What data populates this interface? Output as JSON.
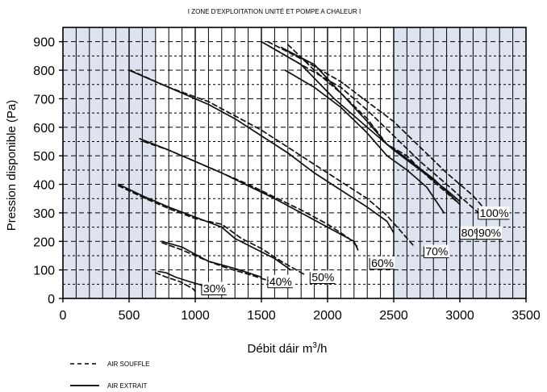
{
  "chart_data": {
    "type": "line",
    "title": "I ZONE D'EXPLOITATION UNITÉ ET POMPE A CHALEUR  I",
    "xlabel_main": "Débit dáir m",
    "xlabel_sup": "3",
    "xlabel_tail": "/h",
    "ylabel": "Pression disponible (Pa)",
    "xlim": [
      0,
      3500
    ],
    "ylim": [
      0,
      950
    ],
    "xticks": [
      "0",
      "500",
      "1000",
      "1500",
      "2000",
      "2500",
      "3000",
      "3500"
    ],
    "xtick_values": [
      0,
      500,
      1000,
      1500,
      2000,
      2500,
      3000,
      3500
    ],
    "yticks": [
      "0",
      "100",
      "200",
      "300",
      "400",
      "500",
      "600",
      "700",
      "800",
      "900"
    ],
    "ytick_values": [
      0,
      100,
      200,
      300,
      400,
      500,
      600,
      700,
      800,
      900
    ],
    "grid": true,
    "shaded_x_ranges": [
      [
        0,
        700
      ],
      [
        2500,
        3500
      ]
    ],
    "shade_color": "#dde4ef",
    "legend": [
      {
        "label": "AIR SOUFFLE",
        "style": "dashed"
      },
      {
        "label": "AIR EXTRAIT",
        "style": "solid"
      }
    ],
    "series": [
      {
        "label": "30%",
        "label_at": [
          1060,
          35
        ],
        "lines": [
          {
            "style": "solid",
            "points": [
              [
                720,
                95
              ],
              [
                780,
                90
              ],
              [
                850,
                75
              ],
              [
                950,
                60
              ],
              [
                1060,
                45
              ]
            ]
          },
          {
            "style": "dashed",
            "points": [
              [
                700,
                90
              ],
              [
                780,
                75
              ],
              [
                880,
                60
              ],
              [
                980,
                35
              ],
              [
                1000,
                25
              ]
            ]
          }
        ]
      },
      {
        "label": "40%",
        "label_at": [
          1560,
          60
        ],
        "lines": [
          {
            "style": "solid",
            "points": [
              [
                750,
                200
              ],
              [
                900,
                180
              ],
              [
                1000,
                155
              ],
              [
                1100,
                130
              ],
              [
                1300,
                105
              ],
              [
                1400,
                90
              ],
              [
                1500,
                75
              ]
            ]
          },
          {
            "style": "dashed",
            "points": [
              [
                750,
                195
              ],
              [
                900,
                170
              ],
              [
                1000,
                150
              ],
              [
                1100,
                130
              ],
              [
                1250,
                105
              ],
              [
                1400,
                85
              ],
              [
                1570,
                60
              ]
            ]
          }
        ]
      },
      {
        "label": "50%",
        "label_at": [
          1880,
          75
        ],
        "lines": [
          {
            "style": "solid",
            "points": [
              [
                420,
                400
              ],
              [
                600,
                360
              ],
              [
                800,
                320
              ],
              [
                1000,
                285
              ],
              [
                1200,
                250
              ],
              [
                1300,
                210
              ],
              [
                1450,
                175
              ],
              [
                1600,
                140
              ],
              [
                1720,
                100
              ]
            ]
          },
          {
            "style": "dashed",
            "points": [
              [
                420,
                395
              ],
              [
                600,
                355
              ],
              [
                800,
                315
              ],
              [
                1000,
                280
              ],
              [
                1200,
                260
              ],
              [
                1350,
                210
              ],
              [
                1500,
                175
              ],
              [
                1650,
                130
              ],
              [
                1820,
                85
              ]
            ]
          }
        ]
      },
      {
        "label": "60%",
        "label_at": [
          2330,
          125
        ],
        "lines": [
          {
            "style": "solid",
            "points": [
              [
                580,
                560
              ],
              [
                800,
                520
              ],
              [
                1000,
                480
              ],
              [
                1200,
                440
              ],
              [
                1400,
                395
              ],
              [
                1600,
                350
              ],
              [
                1800,
                300
              ],
              [
                2000,
                250
              ],
              [
                2200,
                200
              ],
              [
                2230,
                170
              ]
            ]
          },
          {
            "style": "dashed",
            "points": [
              [
                610,
                550
              ],
              [
                800,
                520
              ],
              [
                1000,
                480
              ],
              [
                1200,
                440
              ],
              [
                1400,
                400
              ],
              [
                1600,
                355
              ],
              [
                1800,
                310
              ],
              [
                2000,
                260
              ],
              [
                2150,
                215
              ],
              [
                2230,
                180
              ]
            ]
          }
        ]
      },
      {
        "label": "70%",
        "label_at": [
          2740,
          165
        ],
        "lines": [
          {
            "style": "solid",
            "points": [
              [
                500,
                800
              ],
              [
                800,
                740
              ],
              [
                1100,
                680
              ],
              [
                1300,
                630
              ],
              [
                1500,
                570
              ],
              [
                1700,
                510
              ],
              [
                1900,
                440
              ],
              [
                2100,
                380
              ],
              [
                2300,
                320
              ],
              [
                2450,
                270
              ],
              [
                2500,
                230
              ]
            ]
          },
          {
            "style": "dashed",
            "points": [
              [
                510,
                800
              ],
              [
                800,
                740
              ],
              [
                1100,
                690
              ],
              [
                1300,
                640
              ],
              [
                1500,
                590
              ],
              [
                1700,
                530
              ],
              [
                1900,
                470
              ],
              [
                2100,
                410
              ],
              [
                2300,
                350
              ],
              [
                2450,
                290
              ],
              [
                2650,
                185
              ]
            ]
          }
        ]
      },
      {
        "label": "80%",
        "label_at": [
          3010,
          230
        ],
        "lines": [
          {
            "style": "solid",
            "points": [
              [
                1680,
                800
              ],
              [
                1900,
                740
              ],
              [
                2100,
                670
              ],
              [
                2300,
                580
              ],
              [
                2450,
                500
              ],
              [
                2600,
                450
              ],
              [
                2750,
                390
              ],
              [
                2880,
                300
              ]
            ]
          },
          {
            "style": "dashed",
            "points": [
              [
                1700,
                890
              ],
              [
                1900,
                800
              ],
              [
                2100,
                720
              ],
              [
                2300,
                630
              ],
              [
                2450,
                540
              ],
              [
                2600,
                500
              ],
              [
                2750,
                430
              ],
              [
                2900,
                370
              ],
              [
                3000,
                330
              ]
            ]
          }
        ]
      },
      {
        "label": "90%",
        "label_at": [
          3140,
          230
        ],
        "lines": [
          {
            "style": "solid",
            "points": [
              [
                1650,
                880
              ],
              [
                1900,
                820
              ],
              [
                2100,
                720
              ],
              [
                2300,
                620
              ],
              [
                2450,
                540
              ],
              [
                2600,
                490
              ],
              [
                2800,
                420
              ],
              [
                3000,
                330
              ]
            ]
          },
          {
            "style": "dashed",
            "points": [
              [
                1500,
                900
              ],
              [
                1800,
                820
              ],
              [
                2100,
                740
              ],
              [
                2300,
                660
              ],
              [
                2500,
                570
              ],
              [
                2700,
                480
              ],
              [
                2900,
                400
              ],
              [
                3140,
                300
              ]
            ]
          }
        ]
      },
      {
        "label": "100%",
        "label_at": [
          3150,
          300
        ],
        "lines": [
          {
            "style": "solid",
            "points": [
              [
                1500,
                900
              ],
              [
                1800,
                820
              ],
              [
                2050,
                700
              ],
              [
                2200,
                640
              ],
              [
                2350,
                580
              ],
              [
                2500,
                520
              ],
              [
                2700,
                450
              ],
              [
                2900,
                380
              ],
              [
                3000,
                340
              ]
            ]
          },
          {
            "style": "dashed",
            "points": [
              [
                1550,
                900
              ],
              [
                1800,
                840
              ],
              [
                2100,
                760
              ],
              [
                2300,
                690
              ],
              [
                2500,
                620
              ],
              [
                2700,
                530
              ],
              [
                2900,
                440
              ],
              [
                3100,
                360
              ],
              [
                3250,
                280
              ]
            ]
          }
        ]
      }
    ]
  }
}
